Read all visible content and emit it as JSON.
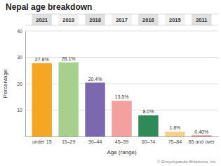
{
  "chart_data": {
    "type": "bar",
    "title": "Nepal age breakdown",
    "categories": [
      "under 15",
      "15–29",
      "30–44",
      "45–59",
      "60–74",
      "75–84",
      "85 and over"
    ],
    "values": [
      27.8,
      28.1,
      20.4,
      13.5,
      8.0,
      1.8,
      0.4
    ],
    "value_labels": [
      "27.8%",
      "28.1%",
      "20.4%",
      "13.5%",
      "8.0%",
      "1.8%",
      "0.40%"
    ],
    "data_labels": true,
    "colors": [
      "#F5A623",
      "#A8D08D",
      "#7B68AE",
      "#F4A0A0",
      "#2E8B57",
      "#F5D08A",
      "#D98080"
    ],
    "xlabel": "Age (range)",
    "ylabel": "Percentage",
    "ylim": [
      0,
      40
    ],
    "yticks": [
      10,
      20,
      30,
      40
    ],
    "grid": true,
    "year_labels": [
      "2021",
      "2019",
      "2018",
      "2017",
      "2016",
      "2015",
      "2011"
    ],
    "source": "© Encyclopædia Britannica, Inc."
  }
}
